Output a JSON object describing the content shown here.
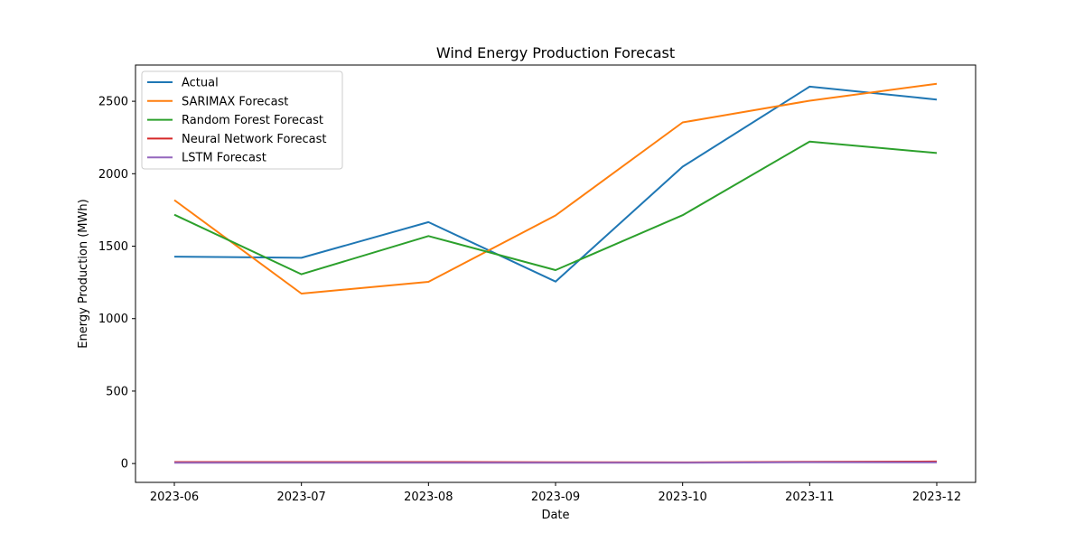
{
  "chart_data": {
    "type": "line",
    "title": "Wind Energy Production Forecast",
    "xlabel": "Date",
    "ylabel": "Energy Production (MWh)",
    "categories": [
      "2023-06",
      "2023-07",
      "2023-08",
      "2023-09",
      "2023-10",
      "2023-11",
      "2023-12"
    ],
    "ylim": [
      -130,
      2750
    ],
    "yticks": [
      0,
      500,
      1000,
      1500,
      2000,
      2500
    ],
    "grid": false,
    "legend_position": "top-left",
    "series": [
      {
        "name": "Actual",
        "color": "#1f77b4",
        "values": [
          1428,
          1420,
          1666,
          1256,
          2049,
          2601,
          2512
        ]
      },
      {
        "name": "SARIMAX Forecast",
        "color": "#ff7f0e",
        "values": [
          1818,
          1173,
          1254,
          1712,
          2354,
          2504,
          2621
        ]
      },
      {
        "name": "Random Forest Forecast",
        "color": "#2ca02c",
        "values": [
          1717,
          1306,
          1570,
          1335,
          1714,
          2222,
          2143
        ]
      },
      {
        "name": "Neural Network Forecast",
        "color": "#d62728",
        "values": [
          10,
          10,
          10,
          9,
          8,
          12,
          14
        ]
      },
      {
        "name": "LSTM Forecast",
        "color": "#9467bd",
        "values": [
          6,
          6,
          5,
          5,
          5,
          9,
          8
        ]
      }
    ]
  }
}
